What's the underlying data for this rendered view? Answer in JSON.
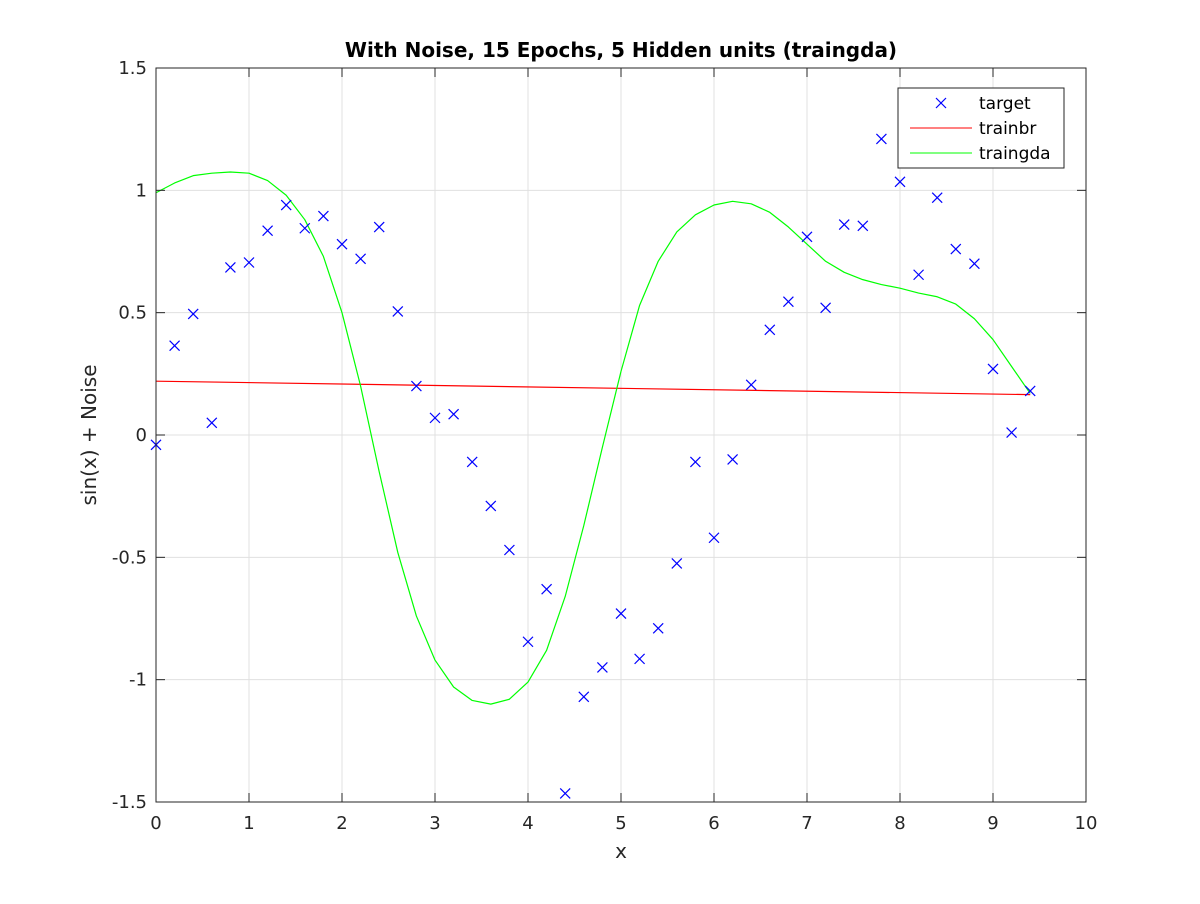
{
  "chart_data": {
    "type": "line",
    "title": "With Noise, 15 Epochs, 5 Hidden units (traingda)",
    "xlabel": "x",
    "ylabel": "sin(x) + Noise",
    "xlim": [
      0,
      10
    ],
    "ylim": [
      -1.5,
      1.5
    ],
    "xticks": [
      0,
      1,
      2,
      3,
      4,
      5,
      6,
      7,
      8,
      9,
      10
    ],
    "xtick_labels": [
      "0",
      "1",
      "2",
      "3",
      "4",
      "5",
      "6",
      "7",
      "8",
      "9",
      "10"
    ],
    "yticks": [
      -1.5,
      -1,
      -0.5,
      0,
      0.5,
      1,
      1.5
    ],
    "ytick_labels": [
      "-1.5",
      "-1",
      "-0.5",
      "0",
      "0.5",
      "1",
      "1.5"
    ],
    "grid": true,
    "legend_position": "top-right",
    "colors": {
      "target": "#0000ff",
      "trainbr": "#ff0000",
      "traingda": "#00ff00",
      "axes": "#262626",
      "grid": "#e0e0e0"
    },
    "series": [
      {
        "name": "target",
        "style": "x-markers",
        "x": [
          0,
          0.2,
          0.4,
          0.6,
          0.8,
          1.0,
          1.2,
          1.4,
          1.6,
          1.8,
          2.0,
          2.2,
          2.4,
          2.6,
          2.8,
          3.0,
          3.2,
          3.4,
          3.6,
          3.8,
          4.0,
          4.2,
          4.4,
          4.6,
          4.8,
          5.0,
          5.2,
          5.4,
          5.6,
          5.8,
          6.0,
          6.2,
          6.4,
          6.6,
          6.8,
          7.0,
          7.2,
          7.4,
          7.6,
          7.8,
          8.0,
          8.2,
          8.4,
          8.6,
          8.8,
          9.0,
          9.2,
          9.4
        ],
        "y": [
          -0.04,
          0.365,
          0.495,
          0.05,
          0.685,
          0.705,
          0.835,
          0.94,
          0.845,
          0.895,
          0.78,
          0.72,
          0.85,
          0.505,
          0.2,
          0.07,
          0.085,
          -0.11,
          -0.29,
          -0.47,
          -0.845,
          -0.63,
          -1.465,
          -1.07,
          -0.95,
          -0.73,
          -0.915,
          -0.79,
          -0.525,
          -0.11,
          -0.42,
          -0.1,
          0.205,
          0.43,
          0.545,
          0.81,
          0.52,
          0.86,
          0.855,
          1.21,
          1.035,
          0.655,
          0.97,
          0.76,
          0.7,
          0.27,
          0.01,
          0.18
        ]
      },
      {
        "name": "trainbr",
        "style": "line",
        "x": [
          0,
          9.4
        ],
        "y": [
          0.22,
          0.165
        ]
      },
      {
        "name": "traingda",
        "style": "line",
        "x": [
          0,
          0.2,
          0.4,
          0.6,
          0.8,
          1.0,
          1.2,
          1.4,
          1.6,
          1.8,
          2.0,
          2.2,
          2.4,
          2.6,
          2.8,
          3.0,
          3.2,
          3.4,
          3.6,
          3.8,
          4.0,
          4.2,
          4.4,
          4.6,
          4.8,
          5.0,
          5.2,
          5.4,
          5.6,
          5.8,
          6.0,
          6.2,
          6.4,
          6.6,
          6.8,
          7.0,
          7.2,
          7.4,
          7.6,
          7.8,
          8.0,
          8.2,
          8.4,
          8.6,
          8.8,
          9.0,
          9.2,
          9.4
        ],
        "y": [
          0.99,
          1.03,
          1.06,
          1.07,
          1.075,
          1.07,
          1.04,
          0.98,
          0.88,
          0.73,
          0.5,
          0.2,
          -0.15,
          -0.48,
          -0.74,
          -0.92,
          -1.03,
          -1.085,
          -1.1,
          -1.08,
          -1.01,
          -0.88,
          -0.66,
          -0.37,
          -0.05,
          0.26,
          0.53,
          0.71,
          0.83,
          0.9,
          0.94,
          0.955,
          0.945,
          0.91,
          0.85,
          0.78,
          0.71,
          0.665,
          0.635,
          0.615,
          0.6,
          0.58,
          0.565,
          0.535,
          0.475,
          0.39,
          0.28,
          0.17
        ]
      }
    ]
  }
}
